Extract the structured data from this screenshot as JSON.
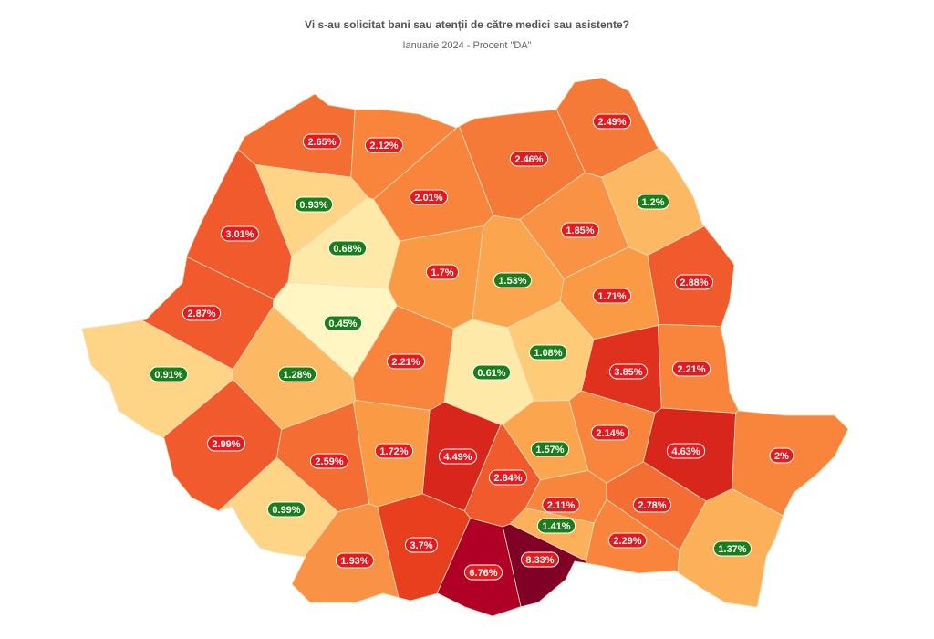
{
  "header": {
    "title": "Vi s-au solicitat bani sau atenții de către medici sau asistente?",
    "subtitle": "Ianuarie 2024 - Procent \"DA\""
  },
  "regions": [
    {
      "label": "2.65%",
      "color": "#f46d33",
      "badge": "#e8191c"
    },
    {
      "label": "2.12%",
      "color": "#f8853b",
      "badge": "#e8191c"
    },
    {
      "label": "2.46%",
      "color": "#f67a37",
      "badge": "#e8191c"
    },
    {
      "label": "2.49%",
      "color": "#f67a37",
      "badge": "#e8191c"
    },
    {
      "label": "0.93%",
      "color": "#fed586",
      "badge": "#1a7f1a"
    },
    {
      "label": "2.01%",
      "color": "#f8853b",
      "badge": "#e8191c"
    },
    {
      "label": "1.2%",
      "color": "#fdb863",
      "badge": "#1a7f1a"
    },
    {
      "label": "3.01%",
      "color": "#f05a2c",
      "badge": "#e8191c"
    },
    {
      "label": "0.68%",
      "color": "#fee9a8",
      "badge": "#1a7f1a"
    },
    {
      "label": "1.85%",
      "color": "#fa9245",
      "badge": "#e8191c"
    },
    {
      "label": "1.7%",
      "color": "#fa9a45",
      "badge": "#e8191c"
    },
    {
      "label": "1.53%",
      "color": "#fba54e",
      "badge": "#1a7f1a"
    },
    {
      "label": "1.71%",
      "color": "#fa9a45",
      "badge": "#e8191c"
    },
    {
      "label": "2.88%",
      "color": "#f05a2c",
      "badge": "#e8191c"
    },
    {
      "label": "2.87%",
      "color": "#f05a2c",
      "badge": "#e8191c"
    },
    {
      "label": "0.45%",
      "color": "#fff6c4",
      "badge": "#1a7f1a"
    },
    {
      "label": "1.08%",
      "color": "#fecb78",
      "badge": "#1a7f1a"
    },
    {
      "label": "0.91%",
      "color": "#fed586",
      "badge": "#1a7f1a"
    },
    {
      "label": "1.28%",
      "color": "#fdb863",
      "badge": "#1a7f1a"
    },
    {
      "label": "2.21%",
      "color": "#f8853b",
      "badge": "#e8191c"
    },
    {
      "label": "0.61%",
      "color": "#fee9a8",
      "badge": "#1a7f1a"
    },
    {
      "label": "3.85%",
      "color": "#e0301e",
      "badge": "#e8191c"
    },
    {
      "label": "2.21%",
      "color": "#f8853b",
      "badge": "#e8191c"
    },
    {
      "label": "2.14%",
      "color": "#f8853b",
      "badge": "#e8191c"
    },
    {
      "label": "4.63%",
      "color": "#d9261c",
      "badge": "#e8191c"
    },
    {
      "label": "2.99%",
      "color": "#f05a2c",
      "badge": "#e8191c"
    },
    {
      "label": "1.72%",
      "color": "#fa9a45",
      "badge": "#e8191c"
    },
    {
      "label": "4.49%",
      "color": "#d9261c",
      "badge": "#e8191c"
    },
    {
      "label": "1.57%",
      "color": "#fba54e",
      "badge": "#1a7f1a"
    },
    {
      "label": "2%",
      "color": "#f8853b",
      "badge": "#e8191c"
    },
    {
      "label": "2.59%",
      "color": "#f46d33",
      "badge": "#e8191c"
    },
    {
      "label": "2.84%",
      "color": "#f05a2c",
      "badge": "#e8191c"
    },
    {
      "label": "0.99%",
      "color": "#fed586",
      "badge": "#1a7f1a"
    },
    {
      "label": "2.11%",
      "color": "#f8853b",
      "badge": "#e8191c"
    },
    {
      "label": "2.78%",
      "color": "#f46d33",
      "badge": "#e8191c"
    },
    {
      "label": "1.41%",
      "color": "#fdb05a",
      "badge": "#1a7f1a"
    },
    {
      "label": "1.93%",
      "color": "#fa9245",
      "badge": "#e8191c"
    },
    {
      "label": "3.7%",
      "color": "#e8401f",
      "badge": "#e8191c"
    },
    {
      "label": "6.76%",
      "color": "#b10026",
      "badge": "#e8191c"
    },
    {
      "label": "8.33%",
      "color": "#800026",
      "badge": "#e8191c"
    },
    {
      "label": "2.29%",
      "color": "#f8853b",
      "badge": "#e8191c"
    },
    {
      "label": "1.37%",
      "color": "#fdb05a",
      "badge": "#1a7f1a"
    }
  ]
}
